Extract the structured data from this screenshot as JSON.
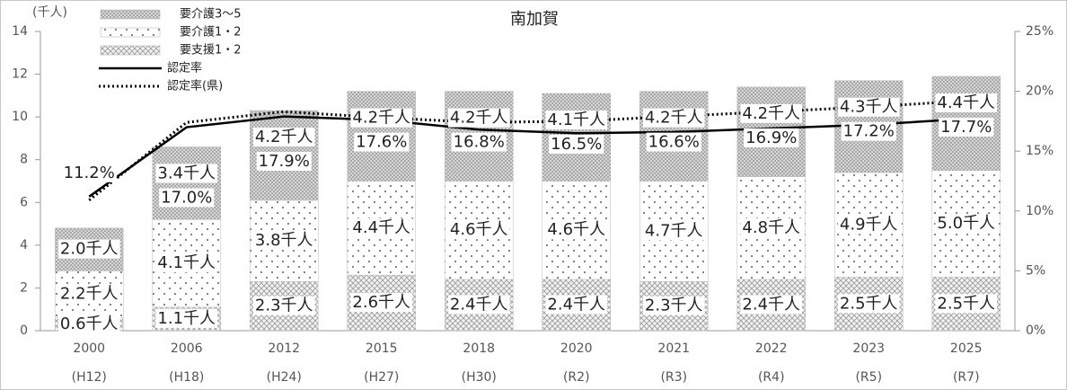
{
  "chart_data": {
    "type": "bar",
    "title": "南加賀",
    "y_axis_label": "(千人)",
    "categories": [
      "2000",
      "2006",
      "2012",
      "2015",
      "2018",
      "2020",
      "2021",
      "2022",
      "2023",
      "2025"
    ],
    "categories_era": [
      "(H12)",
      "(H18)",
      "(H24)",
      "(H27)",
      "(H30)",
      "(R2)",
      "(R3)",
      "(R4)",
      "(R5)",
      "(R7)"
    ],
    "series": [
      {
        "name": "要支援1・2",
        "type": "bar",
        "pattern": "crosshatch",
        "color": "#c8c8c8",
        "values": [
          0.6,
          1.1,
          2.3,
          2.6,
          2.4,
          2.4,
          2.3,
          2.4,
          2.5,
          2.5
        ],
        "value_labels": [
          "0.6千人",
          "1.1千人",
          "2.3千人",
          "2.6千人",
          "2.4千人",
          "2.4千人",
          "2.3千人",
          "2.4千人",
          "2.5千人",
          "2.5千人"
        ]
      },
      {
        "name": "要介護1・2",
        "type": "bar",
        "pattern": "sparse-dots",
        "color": "#a0a0a0",
        "values": [
          2.2,
          4.1,
          3.8,
          4.4,
          4.6,
          4.6,
          4.7,
          4.8,
          4.9,
          5.0
        ],
        "value_labels": [
          "2.2千人",
          "4.1千人",
          "3.8千人",
          "4.4千人",
          "4.6千人",
          "4.6千人",
          "4.7千人",
          "4.8千人",
          "4.9千人",
          "5.0千人"
        ]
      },
      {
        "name": "要介護3～5",
        "type": "bar",
        "pattern": "dense-dots",
        "color": "#8c8c8c",
        "values": [
          2.0,
          3.4,
          4.2,
          4.2,
          4.2,
          4.1,
          4.2,
          4.2,
          4.3,
          4.4
        ],
        "value_labels": [
          "2.0千人",
          "3.4千人",
          "4.2千人",
          "4.2千人",
          "4.2千人",
          "4.1千人",
          "4.2千人",
          "4.2千人",
          "4.3千人",
          "4.4千人"
        ]
      },
      {
        "name": "認定率",
        "type": "line",
        "axis": "y2",
        "color": "#000000",
        "dash": "solid",
        "values": [
          11.2,
          17.0,
          17.9,
          17.6,
          16.8,
          16.5,
          16.6,
          16.9,
          17.2,
          17.7
        ],
        "value_labels": [
          "11.2%",
          "17.0%",
          "17.9%",
          "17.6%",
          "16.8%",
          "16.5%",
          "16.6%",
          "16.9%",
          "17.2%",
          "17.7%"
        ]
      },
      {
        "name": "認定率(県)",
        "type": "line",
        "axis": "y2",
        "color": "#000000",
        "dash": "dotted",
        "values": [
          10.9,
          17.4,
          18.3,
          17.8,
          17.4,
          17.5,
          17.9,
          18.3,
          18.7,
          19.2
        ]
      }
    ],
    "ylim": [
      0,
      14
    ],
    "yticks": [
      0,
      2,
      4,
      6,
      8,
      10,
      12,
      14
    ],
    "y2lim": [
      0,
      25
    ],
    "y2ticks": [
      {
        "value": 0,
        "label": "0%"
      },
      {
        "value": 5,
        "label": "5%"
      },
      {
        "value": 10,
        "label": "10%"
      },
      {
        "value": 15,
        "label": "15%"
      },
      {
        "value": 20,
        "label": "20%"
      },
      {
        "value": 25,
        "label": "25%"
      }
    ],
    "legend": "top-left"
  }
}
